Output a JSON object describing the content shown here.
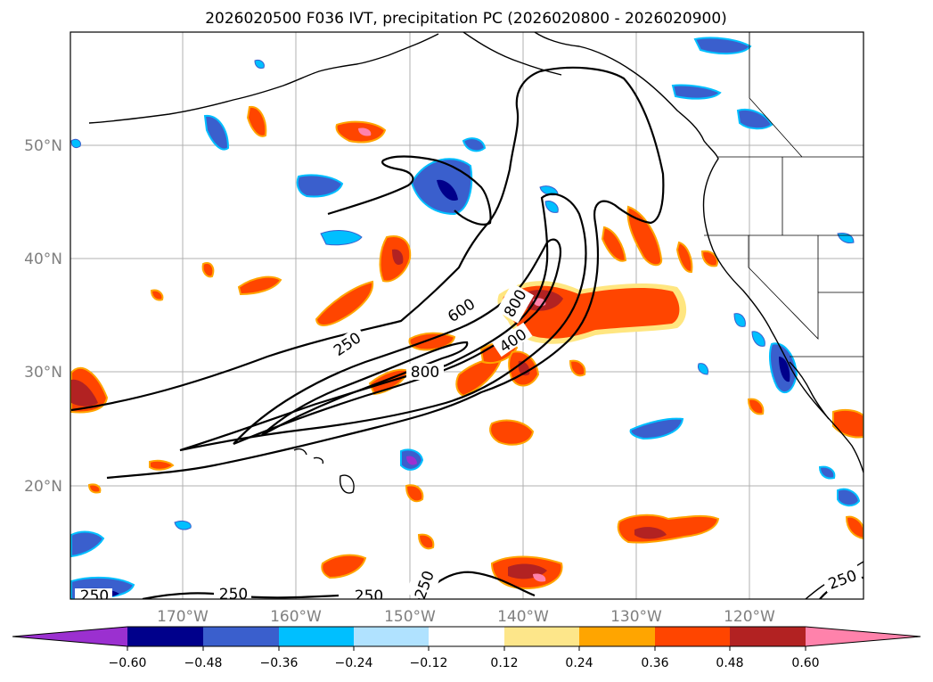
{
  "title": "2026020500 F036 IVT, precipitation PC (2026020800 - 2026020900)",
  "lat_labels": [
    "50°N",
    "40°N",
    "30°N",
    "20°N"
  ],
  "lon_labels": [
    "170°W",
    "160°W",
    "150°W",
    "140°W",
    "130°W",
    "120°W"
  ],
  "contour_labels": [
    "250",
    "600",
    "800",
    "800",
    "400",
    "250",
    "250",
    "250",
    "250",
    "250"
  ],
  "colorbar": {
    "ticks": [
      "−0.60",
      "−0.48",
      "−0.36",
      "−0.24",
      "−0.12",
      "0.12",
      "0.24",
      "0.36",
      "0.48",
      "0.60"
    ],
    "colors": [
      "#9b30d0",
      "#00008b",
      "#3a5fcd",
      "#00bfff",
      "#b0e2ff",
      "#ffffff",
      "#fde68a",
      "#ffa500",
      "#ff4500",
      "#b22222",
      "#ff82ab"
    ]
  }
}
